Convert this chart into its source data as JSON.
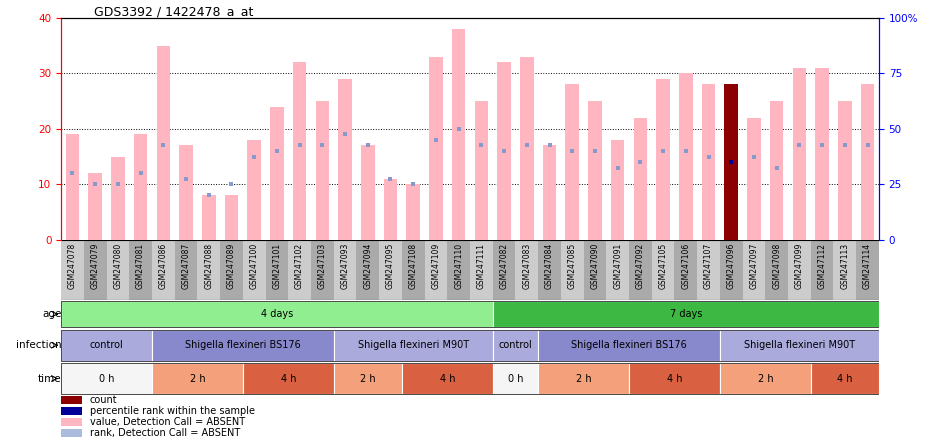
{
  "title": "GDS3392 / 1422478_a_at",
  "samples": [
    "GSM247078",
    "GSM247079",
    "GSM247080",
    "GSM247081",
    "GSM247086",
    "GSM247087",
    "GSM247088",
    "GSM247089",
    "GSM247100",
    "GSM247101",
    "GSM247102",
    "GSM247103",
    "GSM247093",
    "GSM247094",
    "GSM247095",
    "GSM247108",
    "GSM247109",
    "GSM247110",
    "GSM247111",
    "GSM247082",
    "GSM247083",
    "GSM247084",
    "GSM247085",
    "GSM247090",
    "GSM247091",
    "GSM247092",
    "GSM247105",
    "GSM247106",
    "GSM247107",
    "GSM247096",
    "GSM247097",
    "GSM247098",
    "GSM247099",
    "GSM247112",
    "GSM247113",
    "GSM247114"
  ],
  "values": [
    19,
    12,
    15,
    19,
    35,
    17,
    8,
    8,
    18,
    24,
    32,
    25,
    29,
    17,
    11,
    10,
    33,
    38,
    25,
    32,
    33,
    17,
    28,
    25,
    18,
    22,
    29,
    30,
    28,
    28,
    22,
    25,
    31,
    31,
    25,
    28
  ],
  "ranks": [
    12,
    10,
    10,
    12,
    17,
    11,
    8,
    10,
    15,
    16,
    17,
    17,
    19,
    17,
    11,
    10,
    18,
    20,
    17,
    16,
    17,
    17,
    16,
    16,
    13,
    14,
    16,
    16,
    15,
    14,
    15,
    13,
    17,
    17,
    17,
    17
  ],
  "special_bar": "GSM247096",
  "bar_color": "#FFB6C1",
  "special_bar_color": "#8B0000",
  "rank_marker_color": "#8899CC",
  "special_rank_color": "#000099",
  "ylim_left": [
    0,
    40
  ],
  "ylim_right": [
    0,
    100
  ],
  "yticks_left": [
    0,
    10,
    20,
    30,
    40
  ],
  "yticks_right": [
    0,
    25,
    50,
    75,
    100
  ],
  "annotation_rows": [
    {
      "label": "age",
      "segments": [
        {
          "text": "4 days",
          "start": 0,
          "end": 19,
          "color": "#90EE90"
        },
        {
          "text": "7 days",
          "start": 19,
          "end": 36,
          "color": "#3CB843"
        }
      ]
    },
    {
      "label": "infection",
      "segments": [
        {
          "text": "control",
          "start": 0,
          "end": 4,
          "color": "#AAAADD"
        },
        {
          "text": "Shigella flexineri BS176",
          "start": 4,
          "end": 12,
          "color": "#8888CC"
        },
        {
          "text": "Shigella flexineri M90T",
          "start": 12,
          "end": 19,
          "color": "#AAAADD"
        },
        {
          "text": "control",
          "start": 19,
          "end": 21,
          "color": "#AAAADD"
        },
        {
          "text": "Shigella flexineri BS176",
          "start": 21,
          "end": 29,
          "color": "#8888CC"
        },
        {
          "text": "Shigella flexineri M90T",
          "start": 29,
          "end": 36,
          "color": "#AAAADD"
        }
      ]
    },
    {
      "label": "time",
      "segments": [
        {
          "text": "0 h",
          "start": 0,
          "end": 4,
          "color": "#F5F5F5"
        },
        {
          "text": "2 h",
          "start": 4,
          "end": 8,
          "color": "#F4A07A"
        },
        {
          "text": "4 h",
          "start": 8,
          "end": 12,
          "color": "#D96040"
        },
        {
          "text": "2 h",
          "start": 12,
          "end": 15,
          "color": "#F4A07A"
        },
        {
          "text": "4 h",
          "start": 15,
          "end": 19,
          "color": "#D96040"
        },
        {
          "text": "0 h",
          "start": 19,
          "end": 21,
          "color": "#F5F5F5"
        },
        {
          "text": "2 h",
          "start": 21,
          "end": 25,
          "color": "#F4A07A"
        },
        {
          "text": "4 h",
          "start": 25,
          "end": 29,
          "color": "#D96040"
        },
        {
          "text": "2 h",
          "start": 29,
          "end": 33,
          "color": "#F4A07A"
        },
        {
          "text": "4 h",
          "start": 33,
          "end": 36,
          "color": "#D96040"
        }
      ]
    }
  ],
  "legend_items": [
    {
      "label": "count",
      "color": "#8B0000"
    },
    {
      "label": "percentile rank within the sample",
      "color": "#000099"
    },
    {
      "label": "value, Detection Call = ABSENT",
      "color": "#FFB6C1"
    },
    {
      "label": "rank, Detection Call = ABSENT",
      "color": "#AABBDD"
    }
  ]
}
